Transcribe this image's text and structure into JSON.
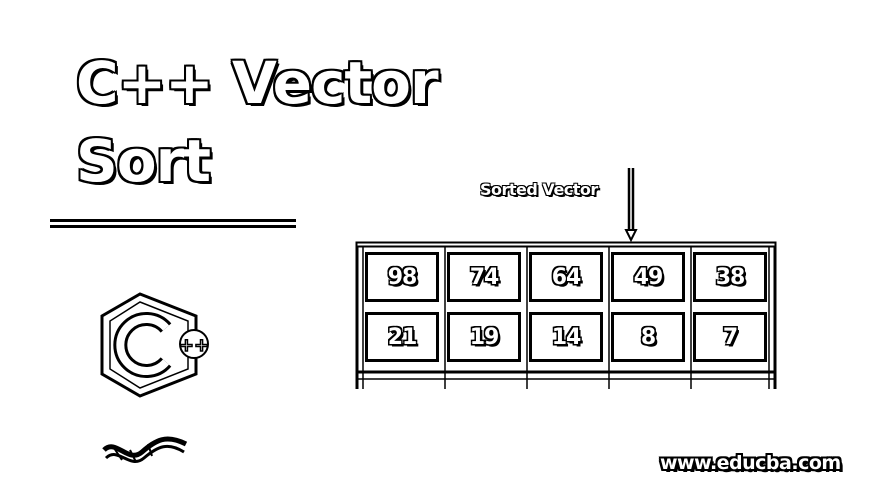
{
  "title": {
    "line1": "C++ Vector",
    "line2": "Sort"
  },
  "caption": "Sorted Vector",
  "vector": {
    "row1": [
      "98",
      "74",
      "64",
      "49",
      "38"
    ],
    "row2": [
      "21",
      "19",
      "14",
      "8",
      "7"
    ]
  },
  "logo": {
    "badge": "++"
  },
  "site": "www.educba.com",
  "icons": {
    "logo": "cpp-logo-icon",
    "swoosh": "swoosh-icon",
    "arrow": "arrow-down-icon"
  }
}
